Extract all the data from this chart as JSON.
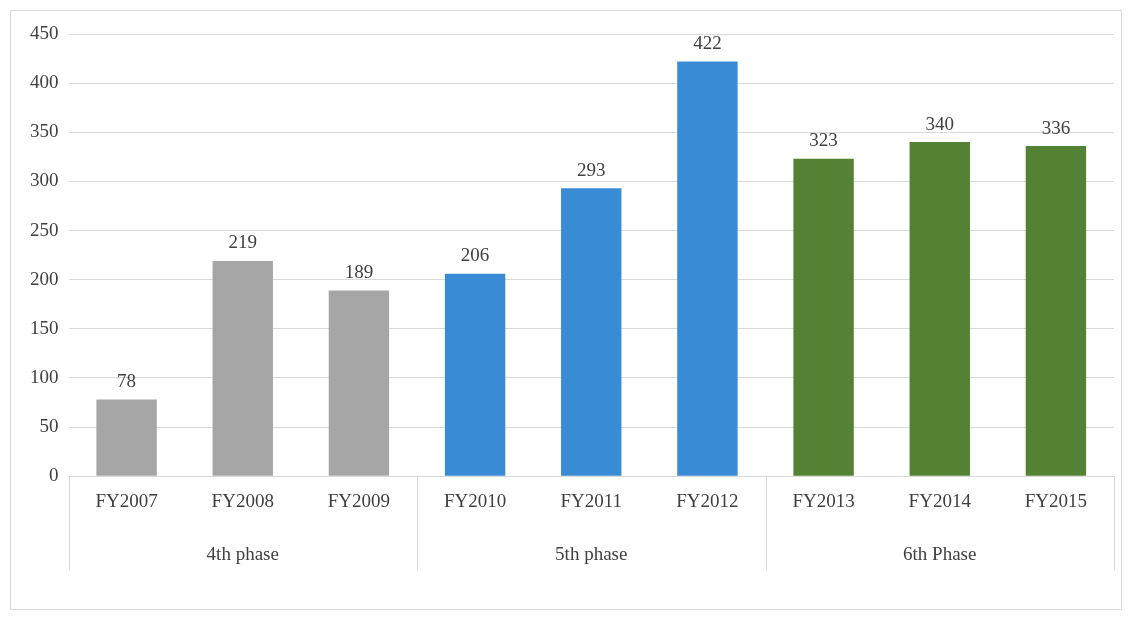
{
  "chart_data": {
    "type": "bar",
    "categories": [
      "FY2007",
      "FY2008",
      "FY2009",
      "FY2010",
      "FY2011",
      "FY2012",
      "FY2013",
      "FY2014",
      "FY2015"
    ],
    "values": [
      78,
      219,
      189,
      206,
      293,
      422,
      323,
      340,
      336
    ],
    "colors": [
      "#a6a6a6",
      "#a6a6a6",
      "#a6a6a6",
      "#3a8bd6",
      "#3a8bd6",
      "#3a8bd6",
      "#548235",
      "#548235",
      "#548235"
    ],
    "ylim": [
      0,
      450
    ],
    "yticks": [
      0,
      50,
      100,
      150,
      200,
      250,
      300,
      350,
      400,
      450
    ],
    "grid": "y",
    "data_labels": true,
    "legend": false,
    "annotations": [
      "4th phase",
      "5th phase",
      "6th Phase"
    ]
  }
}
